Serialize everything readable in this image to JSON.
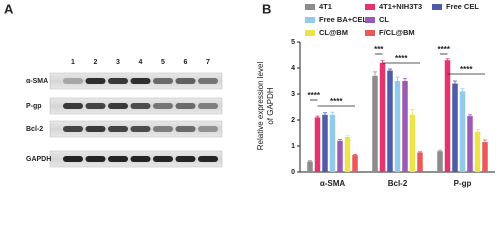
{
  "panel_a": {
    "label": "A",
    "lanes": [
      "1",
      "2",
      "3",
      "4",
      "5",
      "6",
      "7"
    ],
    "rows": [
      "α-SMA",
      "P-gp",
      "Bcl-2",
      "GAPDH"
    ]
  },
  "chart_data": {
    "type": "bar",
    "panel_label": "B",
    "y_label": [
      "Relative expression level",
      "of GAPDH"
    ],
    "categories": [
      "α-SMA",
      "Bcl-2",
      "P-gp"
    ],
    "series": [
      {
        "name": "4T1",
        "color": "#8c8c8c",
        "values": [
          0.4,
          3.7,
          0.8
        ],
        "errors": [
          0.03,
          0.15,
          0.04
        ]
      },
      {
        "name": "4T1+NIH3T3",
        "color": "#e6336f",
        "values": [
          2.1,
          4.2,
          4.3
        ],
        "errors": [
          0.05,
          0.08,
          0.05
        ]
      },
      {
        "name": "Free CEL",
        "color": "#4f5da8",
        "values": [
          2.2,
          3.9,
          3.4
        ],
        "errors": [
          0.08,
          0.06,
          0.1
        ]
      },
      {
        "name": "Free BA+CEL",
        "color": "#93c9ea",
        "values": [
          2.2,
          3.5,
          3.1
        ],
        "errors": [
          0.1,
          0.15,
          0.1
        ]
      },
      {
        "name": "CL",
        "color": "#9b5bb5",
        "values": [
          1.2,
          3.5,
          2.15
        ],
        "errors": [
          0.05,
          0.1,
          0.05
        ]
      },
      {
        "name": "CL@BM",
        "color": "#ede34a",
        "values": [
          1.35,
          2.2,
          1.55
        ],
        "errors": [
          0.05,
          0.2,
          0.08
        ]
      },
      {
        "name": "F/CL@BM",
        "color": "#e8595a",
        "values": [
          0.65,
          0.75,
          1.15
        ],
        "errors": [
          0.03,
          0.03,
          0.08
        ]
      }
    ],
    "annotations": [
      "****",
      "****",
      "***",
      "****",
      "****",
      "****"
    ],
    "ylim": [
      0,
      5
    ],
    "yticks": [
      0,
      1,
      2,
      3,
      4,
      5
    ]
  }
}
